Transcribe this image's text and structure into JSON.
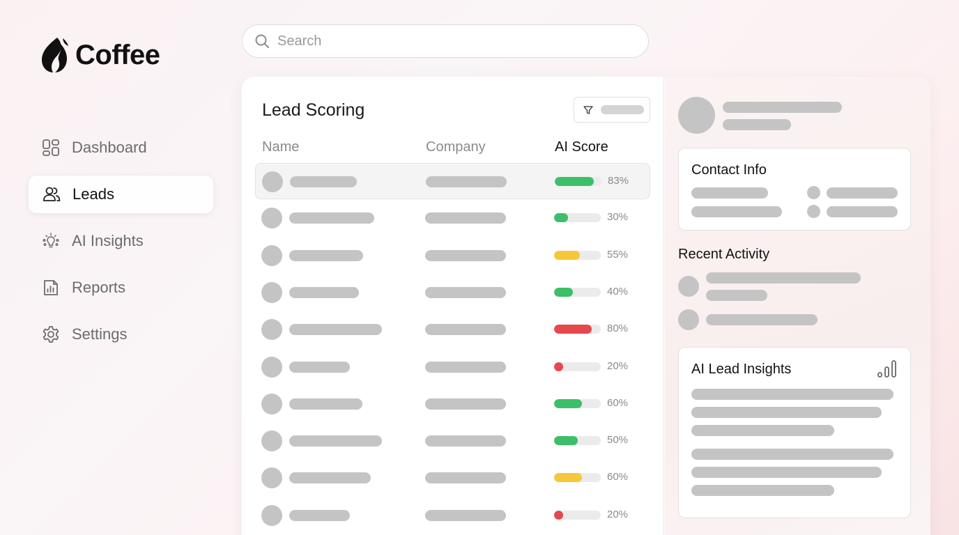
{
  "app": {
    "name": "Coffee"
  },
  "search": {
    "placeholder": "Search",
    "value": ""
  },
  "sidebar": {
    "items": [
      {
        "label": "Dashboard",
        "icon": "dashboard-icon",
        "active": false
      },
      {
        "label": "Leads",
        "icon": "users-icon",
        "active": true
      },
      {
        "label": "AI Insights",
        "icon": "lightbulb-sparkle-icon",
        "active": false
      },
      {
        "label": "Reports",
        "icon": "report-chart-icon",
        "active": false
      },
      {
        "label": "Settings",
        "icon": "gear-icon",
        "active": false
      }
    ]
  },
  "lead_scoring": {
    "title": "Lead Scoring",
    "filter": {
      "icon": "filter-icon"
    },
    "columns": [
      "Name",
      "Company",
      "AI Score"
    ],
    "sorted_column": "AI Score",
    "rows": [
      {
        "score": 83,
        "score_label": "83%",
        "color": "#3dbf6a",
        "selected": true
      },
      {
        "score": 30,
        "score_label": "30%",
        "color": "#3dbf6a",
        "selected": false
      },
      {
        "score": 55,
        "score_label": "55%",
        "color": "#f7c73a",
        "selected": false
      },
      {
        "score": 40,
        "score_label": "40%",
        "color": "#3dbf6a",
        "selected": false
      },
      {
        "score": 80,
        "score_label": "80%",
        "color": "#e5484d",
        "selected": false
      },
      {
        "score": 20,
        "score_label": "20%",
        "color": "#e5484d",
        "selected": false
      },
      {
        "score": 60,
        "score_label": "60%",
        "color": "#3dbf6a",
        "selected": false
      },
      {
        "score": 50,
        "score_label": "50%",
        "color": "#3dbf6a",
        "selected": false
      },
      {
        "score": 60,
        "score_label": "60%",
        "color": "#f7c73a",
        "selected": false
      },
      {
        "score": 20,
        "score_label": "20%",
        "color": "#e5484d",
        "selected": false
      }
    ]
  },
  "detail": {
    "contact_info": {
      "title": "Contact Info"
    },
    "recent_activity": {
      "title": "Recent Activity"
    },
    "ai_insights": {
      "title": "AI Lead Insights",
      "icon": "bar-chart-icon"
    }
  },
  "colors": {
    "score_high": "#3dbf6a",
    "score_mid": "#f7c73a",
    "score_low": "#e5484d",
    "skeleton": "#c4c4c4"
  }
}
